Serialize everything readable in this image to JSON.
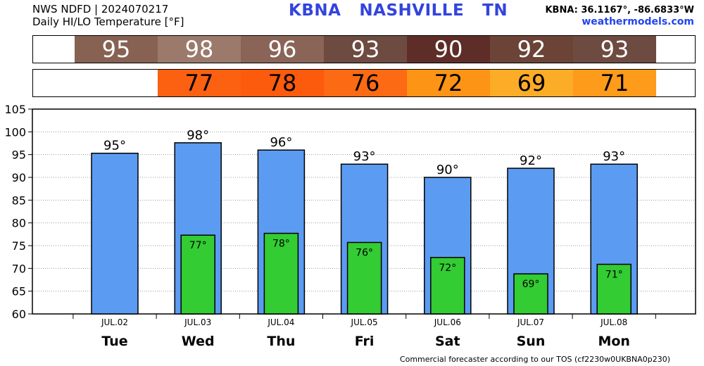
{
  "header": {
    "source": "NWS NDFD | 2024070217",
    "variable": "Daily HI/LO Temperature [°F]",
    "station_id": "KBNA",
    "station_name": "NASHVILLE",
    "state": "TN",
    "coords": "KBNA: 36.1167°, -86.6833°W",
    "site": "weathermodels.com"
  },
  "hi_strip": [
    {
      "value": "95",
      "color": "#876253"
    },
    {
      "value": "98",
      "color": "#9b7a6c"
    },
    {
      "value": "96",
      "color": "#8a6557"
    },
    {
      "value": "93",
      "color": "#6e4b40"
    },
    {
      "value": "90",
      "color": "#5e2d28"
    },
    {
      "value": "92",
      "color": "#6b4437"
    },
    {
      "value": "93",
      "color": "#6e4b40"
    }
  ],
  "lo_strip": [
    {
      "value": "",
      "color": "#ffffff"
    },
    {
      "value": "77",
      "color": "#fc6011"
    },
    {
      "value": "78",
      "color": "#fc5a0c"
    },
    {
      "value": "76",
      "color": "#fd6a14"
    },
    {
      "value": "72",
      "color": "#fe9416"
    },
    {
      "value": "69",
      "color": "#fcac26"
    },
    {
      "value": "71",
      "color": "#fe9b1a"
    }
  ],
  "footer": "Commercial forecaster according to our TOS (cf2230w0UKBNA0p230)",
  "chart_data": {
    "type": "bar",
    "categories": [
      "JUL.02",
      "JUL.03",
      "JUL.04",
      "JUL.05",
      "JUL.06",
      "JUL.07",
      "JUL.08"
    ],
    "day_labels": [
      "Tue",
      "Wed",
      "Thu",
      "Fri",
      "Sat",
      "Sun",
      "Mon"
    ],
    "series": [
      {
        "values": [
          95,
          98,
          96,
          93,
          90,
          92,
          93
        ],
        "color": "#5b9bf2"
      },
      {
        "values": [
          null,
          77,
          78,
          76,
          72,
          69,
          71
        ],
        "color": "#33cc33"
      }
    ],
    "bar_values": [
      95.3,
      97.6,
      96.0,
      92.9,
      90.0,
      92.0,
      92.9
    ],
    "low_bar_values": [
      null,
      77.3,
      77.7,
      75.7,
      72.4,
      68.8,
      70.9
    ],
    "hi_labels": [
      "95°",
      "98°",
      "96°",
      "93°",
      "90°",
      "92°",
      "93°"
    ],
    "lo_labels": [
      "",
      "77°",
      "78°",
      "76°",
      "72°",
      "69°",
      "71°"
    ],
    "ylim": [
      60,
      105
    ],
    "yticks": [
      60,
      65,
      70,
      75,
      80,
      85,
      90,
      95,
      100,
      105
    ],
    "grid": "horizontal dotted"
  }
}
